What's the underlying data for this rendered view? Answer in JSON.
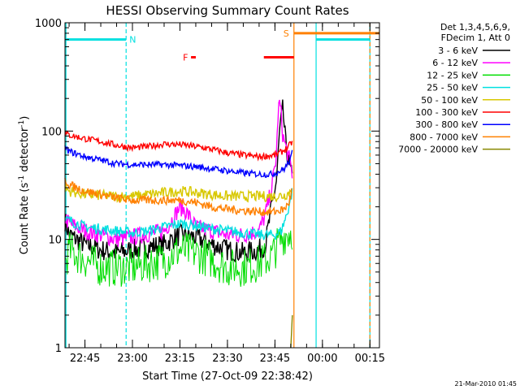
{
  "chart_data": {
    "type": "line",
    "title": "HESSI Observing Summary Count Rates",
    "xlabel": "Start Time (27-Oct-09 22:38:42)",
    "ylabel_main": "Count Rate (s",
    "ylabel_sup1": "-1",
    "ylabel_mid": " detector",
    "ylabel_sup2": "-1",
    "ylabel_end": ")",
    "yscale": "log",
    "ylim": [
      1,
      1000
    ],
    "xlim": [
      "22:38:42",
      "00:18:00"
    ],
    "y_ticks": [
      "1",
      "10",
      "100",
      "1000"
    ],
    "x_ticks": [
      "22:45",
      "23:00",
      "23:15",
      "23:30",
      "23:45",
      "00:00",
      "00:15"
    ],
    "footer_date": "21-Mar-2010 01:45",
    "legend": {
      "header1": "Det 1,3,4,5,6,9,",
      "header2": "FDecim 1, Att 0",
      "entries": [
        {
          "label": "3 - 6 keV",
          "color": "#000000"
        },
        {
          "label": "6 - 12 keV",
          "color": "#ff00ff"
        },
        {
          "label": "12 - 25 keV",
          "color": "#00dd00"
        },
        {
          "label": "25 - 50 keV",
          "color": "#00e0e0"
        },
        {
          "label": "50 - 100 keV",
          "color": "#d8c800"
        },
        {
          "label": "100 - 300 keV",
          "color": "#ff0000"
        },
        {
          "label": "300 - 800 keV",
          "color": "#0000ff"
        },
        {
          "label": "800 - 7000 keV",
          "color": "#ff8000"
        },
        {
          "label": "7000 - 20000 keV",
          "color": "#888800"
        }
      ]
    },
    "flags": [
      {
        "label": "N",
        "color": "#00e0e0",
        "y": 700,
        "segments": [
          [
            "22:38:42",
            "22:58:00"
          ],
          [
            "23:58:00",
            "00:15:00"
          ]
        ]
      },
      {
        "label": "F",
        "color": "#ff0000",
        "y": 480,
        "segments": [
          [
            "23:18:30",
            "23:20:00"
          ],
          [
            "23:41:30",
            "23:51:00"
          ]
        ]
      },
      {
        "label": "S",
        "color": "#ff8000",
        "y": 800,
        "segments": [
          [
            "23:51:00",
            "00:18:00"
          ]
        ]
      }
    ],
    "vertical_lines": [
      {
        "time": "22:39:00",
        "color": "#00e0e0",
        "style": "solid"
      },
      {
        "time": "22:58:00",
        "color": "#00e0e0",
        "style": "dashed"
      },
      {
        "time": "23:51:00",
        "color": "#ff8000",
        "style": "solid"
      },
      {
        "time": "23:58:00",
        "color": "#00e0e0",
        "style": "solid"
      },
      {
        "time": "00:15:00",
        "color": "#00e0e0",
        "style": "solid"
      },
      {
        "time": "00:15:00",
        "color": "#ff8000",
        "style": "dashed"
      }
    ],
    "series": [
      {
        "name": "3 - 6 keV",
        "color": "#000000",
        "noise": 0.1,
        "x": [
          "22:38:42",
          "22:40:00",
          "22:45:00",
          "22:50:00",
          "22:55:00",
          "23:00:00",
          "23:10:00",
          "23:15:00",
          "23:20:00",
          "23:25:00",
          "23:30:00",
          "23:35:00",
          "23:40:00",
          "23:42:00",
          "23:44:00",
          "23:45:30",
          "23:46:30",
          "23:47:30",
          "23:48:30",
          "23:49:30",
          "23:50:30"
        ],
        "y": [
          15,
          11,
          9,
          8,
          7.5,
          8,
          9,
          11,
          10.5,
          9,
          8,
          7.5,
          8,
          9,
          20,
          35,
          100,
          160,
          70,
          50,
          35
        ]
      },
      {
        "name": "6 - 12 keV",
        "color": "#ff00ff",
        "noise": 0.08,
        "x": [
          "22:38:42",
          "22:40:00",
          "22:45:00",
          "22:50:00",
          "22:55:00",
          "23:00:00",
          "23:10:00",
          "23:13:00",
          "23:15:00",
          "23:17:00",
          "23:20:00",
          "23:25:00",
          "23:30:00",
          "23:35:00",
          "23:40:00",
          "23:42:00",
          "23:44:00",
          "23:45:30",
          "23:46:00",
          "23:46:30",
          "23:47:00",
          "23:47:30",
          "23:48:30",
          "23:49:30",
          "23:50:30"
        ],
        "y": [
          16,
          14,
          12,
          11,
          10,
          10.5,
          12,
          16,
          20,
          18,
          13,
          12,
          11,
          11,
          12,
          17,
          30,
          60,
          150,
          185,
          140,
          90,
          70,
          55,
          40
        ]
      },
      {
        "name": "12 - 25 keV",
        "color": "#00dd00",
        "noise": 0.18,
        "x": [
          "22:38:42",
          "22:40:00",
          "22:45:00",
          "22:50:00",
          "22:55:00",
          "23:00:00",
          "23:10:00",
          "23:15:00",
          "23:20:00",
          "23:25:00",
          "23:30:00",
          "23:35:00",
          "23:40:00",
          "23:44:00",
          "23:46:00",
          "23:48:00",
          "23:50:30"
        ],
        "y": [
          6,
          8,
          6.5,
          5.5,
          5.5,
          5.5,
          6.5,
          8,
          7.5,
          6.5,
          5.5,
          5.5,
          6,
          7,
          9,
          11,
          12
        ]
      },
      {
        "name": "25 - 50 keV",
        "color": "#00e0e0",
        "noise": 0.05,
        "x": [
          "22:38:42",
          "22:40:00",
          "22:45:00",
          "22:50:00",
          "22:55:00",
          "23:00:00",
          "23:05:00",
          "23:10:00",
          "23:15:00",
          "23:20:00",
          "23:25:00",
          "23:30:00",
          "23:35:00",
          "23:40:00",
          "23:45:00",
          "23:47:00",
          "23:49:00",
          "23:50:30"
        ],
        "y": [
          15,
          15,
          13,
          12.5,
          12,
          11.5,
          12,
          13,
          14,
          13.5,
          12.5,
          12,
          11.5,
          11,
          11,
          12,
          18,
          28
        ]
      },
      {
        "name": "50 - 100 keV",
        "color": "#d8c800",
        "noise": 0.05,
        "x": [
          "22:38:42",
          "22:40:00",
          "22:45:00",
          "22:55:00",
          "23:00:00",
          "23:05:00",
          "23:10:00",
          "23:15:00",
          "23:20:00",
          "23:25:00",
          "23:30:00",
          "23:35:00",
          "23:40:00",
          "23:45:00",
          "23:48:00",
          "23:49:30",
          "23:50:30"
        ],
        "y": [
          30,
          28,
          26,
          25,
          25,
          26,
          27,
          28,
          27,
          26,
          25,
          25,
          25,
          25,
          25.5,
          27,
          30
        ]
      },
      {
        "name": "100 - 300 keV",
        "color": "#ff0000",
        "noise": 0.03,
        "x": [
          "22:38:42",
          "22:40:00",
          "22:45:00",
          "22:50:00",
          "22:55:00",
          "23:00:00",
          "23:05:00",
          "23:10:00",
          "23:15:00",
          "23:20:00",
          "23:25:00",
          "23:30:00",
          "23:35:00",
          "23:40:00",
          "23:45:00",
          "23:47:00",
          "23:49:00",
          "23:50:30"
        ],
        "y": [
          95,
          92,
          85,
          80,
          74,
          70,
          72,
          76,
          75,
          72,
          68,
          63,
          60,
          58,
          60,
          64,
          70,
          80
        ]
      },
      {
        "name": "300 - 800 keV",
        "color": "#0000ff",
        "noise": 0.03,
        "x": [
          "22:38:42",
          "22:40:00",
          "22:45:00",
          "22:50:00",
          "22:55:00",
          "23:00:00",
          "23:05:00",
          "23:10:00",
          "23:15:00",
          "23:20:00",
          "23:25:00",
          "23:30:00",
          "23:35:00",
          "23:40:00",
          "23:44:00",
          "23:46:00",
          "23:48:00",
          "23:50:00",
          "23:50:30"
        ],
        "y": [
          70,
          65,
          58,
          54,
          50,
          49,
          49,
          49,
          48,
          47,
          45,
          43,
          41,
          40,
          40,
          42,
          45,
          55,
          65
        ]
      },
      {
        "name": "800 - 7000 keV",
        "color": "#ff8000",
        "noise": 0.04,
        "x": [
          "22:38:42",
          "22:40:00",
          "22:45:00",
          "22:50:00",
          "22:55:00",
          "23:00:00",
          "23:10:00",
          "23:15:00",
          "23:20:00",
          "23:25:00",
          "23:30:00",
          "23:35:00",
          "23:40:00",
          "23:45:00",
          "23:48:00",
          "23:49:30",
          "23:50:30"
        ],
        "y": [
          36,
          32,
          28,
          26,
          24,
          23,
          23,
          23,
          22,
          20,
          19,
          18.5,
          18,
          18,
          19,
          22,
          30
        ]
      },
      {
        "name": "7000 - 20000 keV",
        "color": "#888800",
        "noise": 0,
        "x": [
          "23:50:00",
          "23:50:30"
        ],
        "y": [
          1,
          2
        ]
      }
    ]
  }
}
